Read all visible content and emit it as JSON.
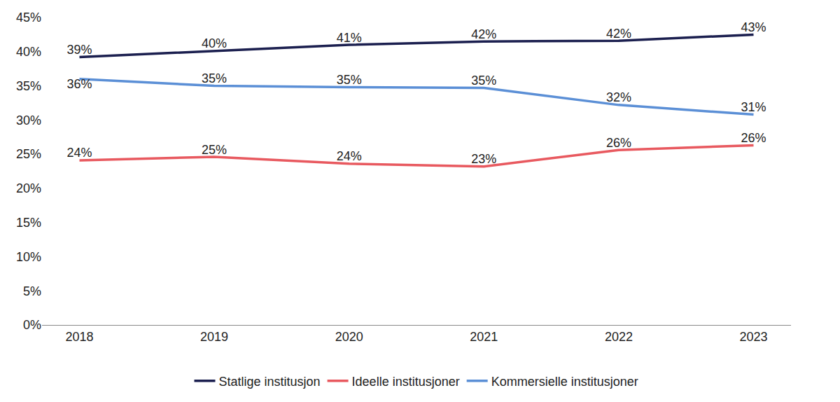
{
  "chart_data": {
    "type": "line",
    "categories": [
      "2018",
      "2019",
      "2020",
      "2021",
      "2022",
      "2023"
    ],
    "series": [
      {
        "name": "Statlige institusjon",
        "color": "#1b1f4f",
        "values": [
          39.2,
          40.1,
          41.0,
          41.5,
          41.6,
          42.5
        ],
        "value_labels": [
          "39%",
          "40%",
          "41%",
          "42%",
          "42%",
          "43%"
        ]
      },
      {
        "name": "Ideelle institusjoner",
        "color": "#e8595f",
        "values": [
          24.1,
          24.6,
          23.6,
          23.2,
          25.6,
          26.3
        ],
        "value_labels": [
          "24%",
          "25%",
          "24%",
          "23%",
          "26%",
          "26%"
        ]
      },
      {
        "name": "Kommersielle institusjoner",
        "color": "#5b8fd6",
        "values": [
          36.0,
          35.0,
          34.8,
          34.7,
          32.2,
          30.8
        ],
        "value_labels": [
          "36%",
          "35%",
          "35%",
          "35%",
          "32%",
          "31%"
        ]
      }
    ],
    "ylim": [
      0,
      45
    ],
    "yticks": [
      {
        "value": 0,
        "label": "0%"
      },
      {
        "value": 5,
        "label": "5%"
      },
      {
        "value": 10,
        "label": "10%"
      },
      {
        "value": 15,
        "label": "15%"
      },
      {
        "value": 20,
        "label": "20%"
      },
      {
        "value": 25,
        "label": "25%"
      },
      {
        "value": 30,
        "label": "30%"
      },
      {
        "value": 35,
        "label": "35%"
      },
      {
        "value": 40,
        "label": "40%"
      },
      {
        "value": 45,
        "label": "45%"
      }
    ],
    "grid": false,
    "data_labels": true,
    "legend": "bottom"
  }
}
